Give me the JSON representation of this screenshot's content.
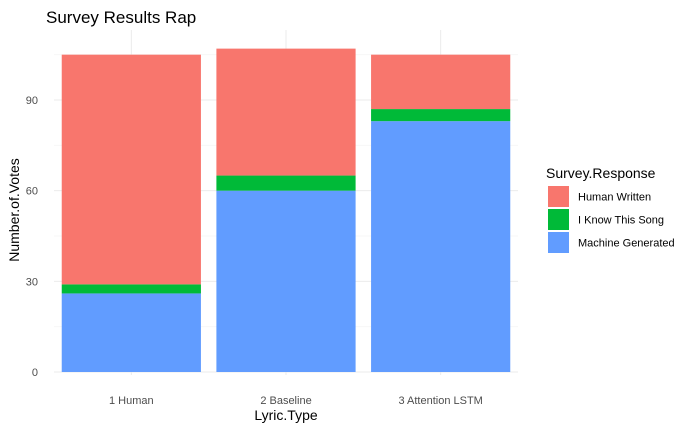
{
  "chart_data": {
    "type": "bar",
    "stacked": true,
    "title": "Survey Results Rap",
    "xlabel": "Lyric.Type",
    "ylabel": "Number.of.Votes",
    "categories": [
      "1 Human",
      "2 Baseline",
      "3 Attention LSTM"
    ],
    "yticks": [
      0,
      30,
      60,
      90
    ],
    "ylim": [
      0,
      111
    ],
    "grid": true,
    "legend": {
      "title": "Survey.Response",
      "placement": "right"
    },
    "series": [
      {
        "name": "Machine Generated",
        "color": "#619cff",
        "values": [
          26,
          60,
          83
        ]
      },
      {
        "name": "I Know This Song",
        "color": "#00ba38",
        "values": [
          3,
          5,
          4
        ]
      },
      {
        "name": "Human Written",
        "color": "#f8766d",
        "values": [
          76,
          42,
          18
        ]
      }
    ],
    "legend_order": [
      "Human Written",
      "I Know This Song",
      "Machine Generated"
    ]
  }
}
